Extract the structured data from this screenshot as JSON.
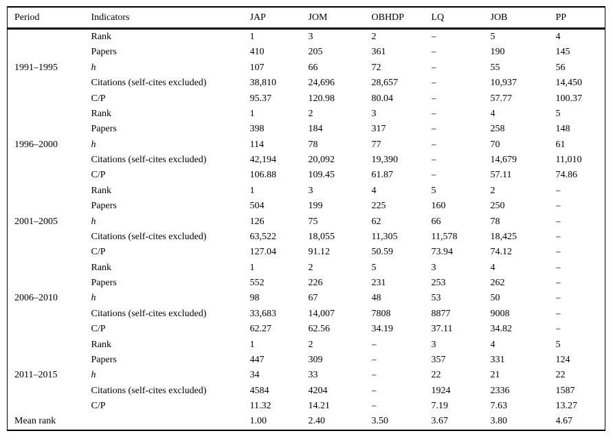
{
  "colors": {
    "background": "#ffffff",
    "text": "#000000",
    "rule": "#000000"
  },
  "table": {
    "columns": [
      "Period",
      "Indicators",
      "JAP",
      "JOM",
      "OBHDP",
      "LQ",
      "JOB",
      "PP"
    ],
    "groups": [
      {
        "period": "1991–1995",
        "rows": [
          {
            "indicator": "Rank",
            "values": [
              "1",
              "3",
              "2",
              "–",
              "5",
              "4"
            ]
          },
          {
            "indicator": "Papers",
            "values": [
              "410",
              "205",
              "361",
              "–",
              "190",
              "145"
            ]
          },
          {
            "indicator": "h",
            "values": [
              "107",
              "66",
              "72",
              "–",
              "55",
              "56"
            ]
          },
          {
            "indicator": "Citations (self-cites excluded)",
            "values": [
              "38,810",
              "24,696",
              "28,657",
              "–",
              "10,937",
              "14,450"
            ]
          },
          {
            "indicator": "C/P",
            "values": [
              "95.37",
              "120.98",
              "80.04",
              "–",
              "57.77",
              "100.37"
            ]
          }
        ]
      },
      {
        "period": "1996–2000",
        "rows": [
          {
            "indicator": "Rank",
            "values": [
              "1",
              "2",
              "3",
              "–",
              "4",
              "5"
            ]
          },
          {
            "indicator": "Papers",
            "values": [
              "398",
              "184",
              "317",
              "–",
              "258",
              "148"
            ]
          },
          {
            "indicator": "h",
            "values": [
              "114",
              "78",
              "77",
              "–",
              "70",
              "61"
            ]
          },
          {
            "indicator": "Citations (self-cites excluded)",
            "values": [
              "42,194",
              "20,092",
              "19,390",
              "–",
              "14,679",
              "11,010"
            ]
          },
          {
            "indicator": "C/P",
            "values": [
              "106.88",
              "109.45",
              "61.87",
              "–",
              "57.11",
              "74.86"
            ]
          }
        ]
      },
      {
        "period": "2001–2005",
        "rows": [
          {
            "indicator": "Rank",
            "values": [
              "1",
              "3",
              "4",
              "5",
              "2",
              "–"
            ]
          },
          {
            "indicator": "Papers",
            "values": [
              "504",
              "199",
              "225",
              "160",
              "250",
              "–"
            ]
          },
          {
            "indicator": "h",
            "values": [
              "126",
              "75",
              "62",
              "66",
              "78",
              "–"
            ]
          },
          {
            "indicator": "Citations (self-cites excluded)",
            "values": [
              "63,522",
              "18,055",
              "11,305",
              "11,578",
              "18,425",
              "–"
            ]
          },
          {
            "indicator": "C/P",
            "values": [
              "127.04",
              "91.12",
              "50.59",
              "73.94",
              "74.12",
              "–"
            ]
          }
        ]
      },
      {
        "period": "2006–2010",
        "rows": [
          {
            "indicator": "Rank",
            "values": [
              "1",
              "2",
              "5",
              "3",
              "4",
              "–"
            ]
          },
          {
            "indicator": "Papers",
            "values": [
              "552",
              "226",
              "231",
              "253",
              "262",
              "–"
            ]
          },
          {
            "indicator": "h",
            "values": [
              "98",
              "67",
              "48",
              "53",
              "50",
              "–"
            ]
          },
          {
            "indicator": "Citations (self-cites excluded)",
            "values": [
              "33,683",
              "14,007",
              "7808",
              "8877",
              "9008",
              "–"
            ]
          },
          {
            "indicator": "C/P",
            "values": [
              "62.27",
              "62.56",
              "34.19",
              "37.11",
              "34.82",
              "–"
            ]
          }
        ]
      },
      {
        "period": "2011–2015",
        "rows": [
          {
            "indicator": "Rank",
            "values": [
              "1",
              "2",
              "–",
              "3",
              "4",
              "5"
            ]
          },
          {
            "indicator": "Papers",
            "values": [
              "447",
              "309",
              "–",
              "357",
              "331",
              "124"
            ]
          },
          {
            "indicator": "h",
            "values": [
              "34",
              "33",
              "–",
              "22",
              "21",
              "22"
            ]
          },
          {
            "indicator": "Citations (self-cites excluded)",
            "values": [
              "4584",
              "4204",
              "–",
              "1924",
              "2336",
              "1587"
            ]
          },
          {
            "indicator": "C/P",
            "values": [
              "11.32",
              "14.21",
              "–",
              "7.19",
              "7.63",
              "13.27"
            ]
          }
        ]
      }
    ],
    "footer": {
      "label": "Mean rank",
      "indicator": "",
      "values": [
        "1.00",
        "2.40",
        "3.50",
        "3.67",
        "3.80",
        "4.67"
      ]
    }
  }
}
